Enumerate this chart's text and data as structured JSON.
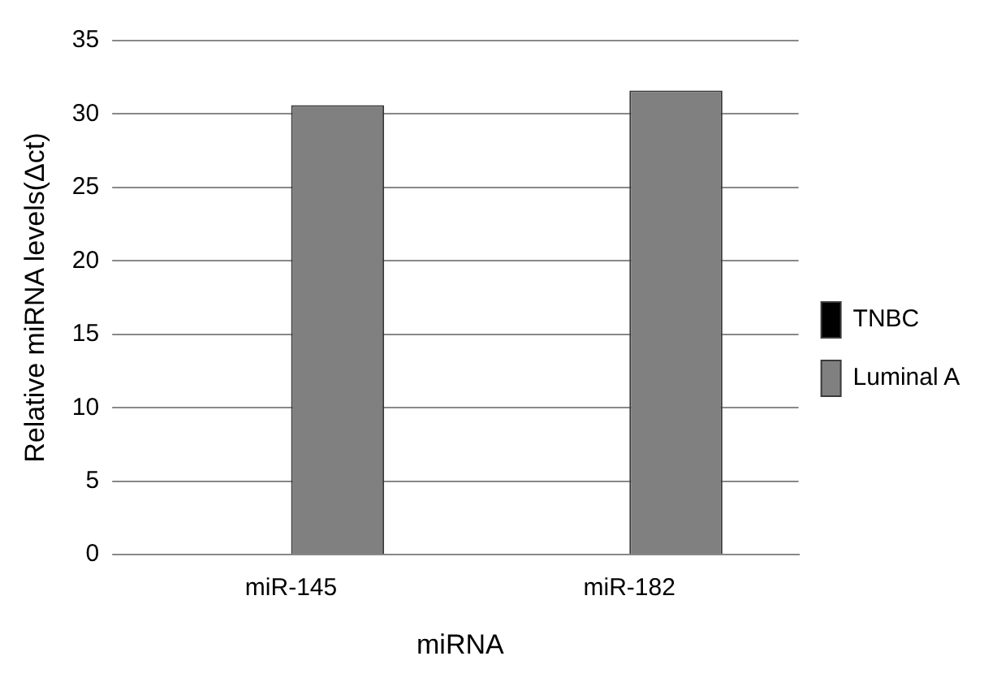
{
  "chart_data": {
    "type": "bar",
    "xlabel": "miRNA",
    "ylabel": "Relative miRNA levels(Δct)",
    "categories": [
      "miR-145",
      "miR-182"
    ],
    "series": [
      {
        "name": "TNBC",
        "color": "#000000",
        "values": [
          null,
          null
        ]
      },
      {
        "name": "Luminal A",
        "color": "#808080",
        "values": [
          30.6,
          31.6
        ]
      }
    ],
    "ylim": [
      0,
      35
    ],
    "yticks": [
      0,
      5,
      10,
      15,
      20,
      25,
      30,
      35
    ],
    "grid": "y",
    "legend": "right"
  }
}
